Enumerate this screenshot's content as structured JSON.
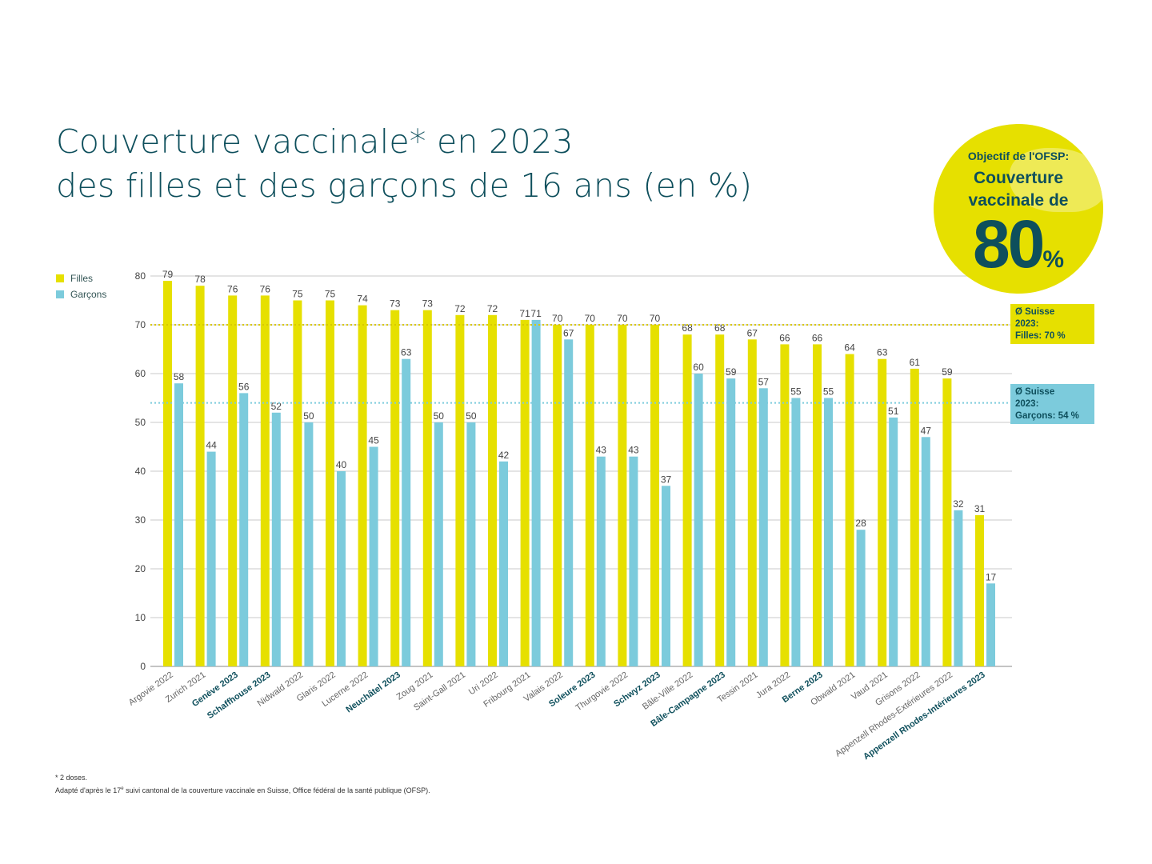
{
  "title": {
    "line1": "Couverture vaccinale* en 2023",
    "line2": "des filles et des garçons de 16 ans (en %)"
  },
  "badge": {
    "line1": "Objectif de l'OFSP:",
    "line2": "Couverture",
    "line3": "vaccinale de",
    "value": "80",
    "unit": "%"
  },
  "avg_filles": {
    "line1": "Ø Suisse",
    "line2": "2023:",
    "line3": "Filles: 70 %"
  },
  "avg_garcons": {
    "line1": "Ø Suisse",
    "line2": "2023:",
    "line3": "Garçons:  54 %"
  },
  "footnote": {
    "line1": "* 2 doses.",
    "line2_pre": "Adapté d'après le 17",
    "line2_sup": "e",
    "line2_post": " suivi cantonal de la couverture vaccinale en Suisse, Office fédéral de la santé publique (OFSP)."
  },
  "colors": {
    "filles": "#e6e000",
    "garcons": "#7ccbdc",
    "title": "#0e4f5c"
  },
  "chart_data": {
    "type": "bar",
    "title": "Couverture vaccinale* en 2023 des filles et des garçons de 16 ans (en %)",
    "ylim": [
      0,
      80
    ],
    "yticks": [
      0,
      10,
      20,
      30,
      40,
      50,
      60,
      70,
      80
    ],
    "grid": true,
    "legend": "top-left",
    "reference_lines": [
      {
        "name": "Ø Suisse 2023 Filles",
        "value": 70
      },
      {
        "name": "Ø Suisse 2023 Garçons",
        "value": 54
      }
    ],
    "categories": [
      "Argovie 2022",
      "Zurich 2021",
      "Genève 2023",
      "Schaffhouse 2023",
      "Nidwald 2022",
      "Glaris 2022",
      "Lucerne 2022",
      "Neuchâtel 2023",
      "Zoug 2021",
      "Saint-Gall 2021",
      "Uri 2022",
      "Fribourg 2021",
      "Valais 2022",
      "Soleure 2023",
      "Thurgovie 2022",
      "Schwyz 2023",
      "Bâle-Ville 2022",
      "Bâle-Campagne 2023",
      "Tessin 2021",
      "Jura 2022",
      "Berne 2023",
      "Obwald 2021",
      "Vaud 2021",
      "Grisons 2022",
      "Appenzell Rhodes-Extérieures 2022",
      "Appenzell Rhodes-Intérieures 2023"
    ],
    "bold_categories": [
      "Genève 2023",
      "Schaffhouse 2023",
      "Neuchâtel 2023",
      "Soleure 2023",
      "Schwyz 2023",
      "Bâle-Campagne 2023",
      "Berne 2023",
      "Appenzell Rhodes-Intérieures 2023"
    ],
    "series": [
      {
        "name": "Filles",
        "values": [
          79,
          78,
          76,
          76,
          75,
          75,
          74,
          73,
          73,
          72,
          72,
          71,
          70,
          70,
          70,
          70,
          68,
          68,
          67,
          66,
          66,
          64,
          63,
          61,
          59,
          31
        ]
      },
      {
        "name": "Garçons",
        "values": [
          58,
          44,
          56,
          52,
          50,
          40,
          45,
          63,
          50,
          50,
          42,
          71,
          67,
          43,
          43,
          37,
          60,
          59,
          57,
          55,
          55,
          28,
          51,
          47,
          32,
          17
        ]
      }
    ]
  }
}
